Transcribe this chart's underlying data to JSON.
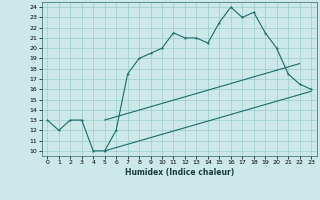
{
  "title": "",
  "xlabel": "Humidex (Indice chaleur)",
  "bg_color": "#cce8e8",
  "grid_color": "#99cccc",
  "line_color": "#1a6b6b",
  "xlim": [
    -0.5,
    23.5
  ],
  "ylim": [
    9.5,
    24.5
  ],
  "xticks": [
    0,
    1,
    2,
    3,
    4,
    5,
    6,
    7,
    8,
    9,
    10,
    11,
    12,
    13,
    14,
    15,
    16,
    17,
    18,
    19,
    20,
    21,
    22,
    23
  ],
  "yticks": [
    10,
    11,
    12,
    13,
    14,
    15,
    16,
    17,
    18,
    19,
    20,
    21,
    22,
    23,
    24
  ],
  "line1_x": [
    0,
    1,
    2,
    3,
    4,
    5,
    6,
    7,
    8,
    9,
    10,
    11,
    12,
    13,
    14,
    15,
    16,
    17,
    18,
    19,
    20,
    21,
    22,
    23
  ],
  "line1_y": [
    13,
    12,
    13,
    13,
    10,
    10,
    12,
    17.5,
    19,
    19.5,
    20,
    21.5,
    21,
    21,
    20.5,
    22.5,
    24,
    23,
    23.5,
    21.5,
    20,
    17.5,
    16.5,
    16
  ],
  "line2_x": [
    5,
    22
  ],
  "line2_y": [
    13,
    18.5
  ],
  "line3_x": [
    5,
    23
  ],
  "line3_y": [
    10,
    15.8
  ],
  "marker_x": [
    0,
    1,
    2,
    3,
    4,
    5,
    6,
    7,
    8,
    9,
    10,
    11,
    12,
    13,
    14,
    15,
    16,
    17,
    18,
    19,
    20,
    21,
    22,
    23
  ],
  "marker_y": [
    13,
    12,
    13,
    13,
    10,
    10,
    12,
    17.5,
    19,
    19.5,
    20,
    21.5,
    21,
    21,
    20.5,
    22.5,
    24,
    23,
    23.5,
    21.5,
    20,
    17.5,
    16.5,
    16
  ]
}
